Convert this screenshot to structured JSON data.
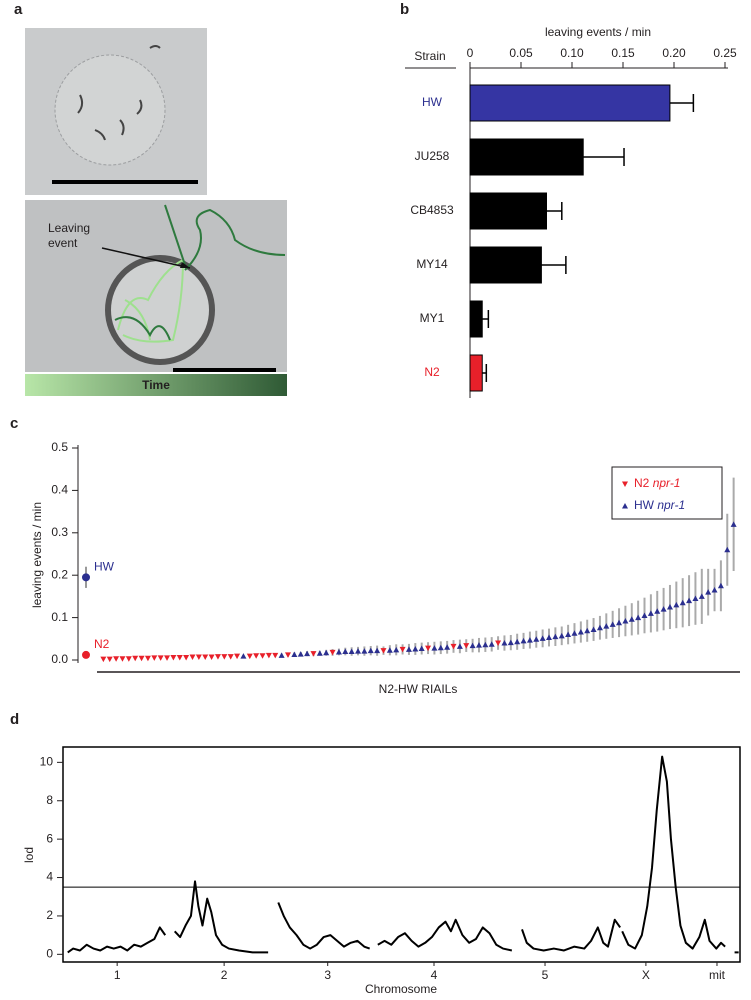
{
  "panel_labels": [
    "a",
    "b",
    "c",
    "d"
  ],
  "panel_a": {
    "annotation_lines": [
      "Leaving",
      "event"
    ],
    "time_label": "Time"
  },
  "chart_data": [
    {
      "type": "bar",
      "orientation": "horizontal",
      "xlabel": "leaving events / min",
      "category_header": "Strain",
      "categories": [
        "HW",
        "JU258",
        "CB4853",
        "MY14",
        "MY1",
        "N2"
      ],
      "values": [
        0.196,
        0.111,
        0.075,
        0.07,
        0.012,
        0.012
      ],
      "errors": [
        0.023,
        0.04,
        0.015,
        0.024,
        0.006,
        0.004
      ],
      "colors": [
        "#3535a3",
        "#000000",
        "#000000",
        "#000000",
        "#000000",
        "#e8202a"
      ],
      "label_colors": [
        "#2b2f8f",
        "#231f20",
        "#231f20",
        "#231f20",
        "#231f20",
        "#e8202a"
      ],
      "xlim": [
        0,
        0.25
      ],
      "xticks": [
        0,
        0.05,
        {
          "value": 0.1,
          "label": "0.10"
        },
        0.15,
        {
          "value": 0.2,
          "label": "0.20"
        },
        0.25
      ]
    },
    {
      "type": "scatter",
      "ylabel": "leaving events / min",
      "xlabel": "N2-HW RIAILs",
      "ylim": [
        0,
        0.5
      ],
      "yticks": [
        {
          "value": 0,
          "label": "0.0"
        },
        0.1,
        0.2,
        0.3,
        0.4,
        0.5
      ],
      "xlim": [
        0,
        101
      ],
      "legend": "upper right",
      "parents": {
        "names": [
          "HW",
          "N2"
        ],
        "values": [
          0.195,
          0.012
        ],
        "errors": [
          0.025,
          0.004
        ],
        "colors": [
          "#2b2f8f",
          "#e8202a"
        ]
      },
      "series": [
        {
          "name": "N2 npr-1",
          "color": "#e8202a",
          "marker": "triangle-down",
          "x": [
            1,
            2,
            3,
            4,
            5,
            6,
            7,
            8,
            9,
            10,
            11,
            12,
            13,
            14,
            15,
            16,
            17,
            18,
            19,
            20,
            21,
            22,
            24,
            25,
            26,
            27,
            28,
            30,
            34,
            37,
            45,
            48,
            52,
            56,
            58,
            63
          ],
          "values": [
            0.002,
            0.002,
            0.003,
            0.003,
            0.003,
            0.004,
            0.004,
            0.004,
            0.005,
            0.005,
            0.005,
            0.006,
            0.006,
            0.006,
            0.007,
            0.007,
            0.007,
            0.007,
            0.008,
            0.008,
            0.008,
            0.009,
            0.009,
            0.01,
            0.01,
            0.011,
            0.011,
            0.012,
            0.015,
            0.018,
            0.022,
            0.025,
            0.028,
            0.032,
            0.034,
            0.04
          ],
          "errors": [
            0.001,
            0.001,
            0.001,
            0.001,
            0.001,
            0.001,
            0.001,
            0.001,
            0.001,
            0.001,
            0.001,
            0.001,
            0.001,
            0.001,
            0.001,
            0.001,
            0.001,
            0.001,
            0.001,
            0.001,
            0.001,
            0.001,
            0.002,
            0.002,
            0.003,
            0.003,
            0.003,
            0.004,
            0.006,
            0.008,
            0.01,
            0.012,
            0.014,
            0.015,
            0.015,
            0.016
          ]
        },
        {
          "name": "HW npr-1",
          "color": "#2b2f8f",
          "marker": "triangle-up",
          "x": [
            23,
            29,
            31,
            32,
            33,
            35,
            36,
            38,
            39,
            40,
            41,
            42,
            43,
            44,
            46,
            47,
            49,
            50,
            51,
            53,
            54,
            55,
            57,
            59,
            60,
            61,
            62,
            64,
            65,
            66,
            67,
            68,
            69,
            70,
            71,
            72,
            73,
            74,
            75,
            76,
            77,
            78,
            79,
            80,
            81,
            82,
            83,
            84,
            85,
            86,
            87,
            88,
            89,
            90,
            91,
            92,
            93,
            94,
            95,
            96,
            97,
            98,
            99,
            100
          ],
          "values": [
            0.009,
            0.011,
            0.013,
            0.014,
            0.015,
            0.016,
            0.017,
            0.019,
            0.02,
            0.02,
            0.021,
            0.021,
            0.022,
            0.022,
            0.023,
            0.024,
            0.025,
            0.026,
            0.027,
            0.028,
            0.029,
            0.03,
            0.032,
            0.034,
            0.035,
            0.036,
            0.037,
            0.04,
            0.041,
            0.043,
            0.045,
            0.047,
            0.049,
            0.051,
            0.053,
            0.055,
            0.057,
            0.06,
            0.063,
            0.066,
            0.069,
            0.072,
            0.076,
            0.08,
            0.084,
            0.088,
            0.092,
            0.096,
            0.1,
            0.105,
            0.11,
            0.115,
            0.12,
            0.125,
            0.13,
            0.135,
            0.14,
            0.145,
            0.15,
            0.16,
            0.165,
            0.175,
            0.26,
            0.32
          ],
          "errors": [
            0.003,
            0.004,
            0.005,
            0.005,
            0.006,
            0.006,
            0.007,
            0.008,
            0.009,
            0.01,
            0.01,
            0.011,
            0.011,
            0.012,
            0.012,
            0.013,
            0.013,
            0.014,
            0.014,
            0.015,
            0.015,
            0.015,
            0.016,
            0.016,
            0.017,
            0.017,
            0.017,
            0.018,
            0.018,
            0.019,
            0.019,
            0.02,
            0.02,
            0.021,
            0.021,
            0.022,
            0.022,
            0.023,
            0.024,
            0.025,
            0.026,
            0.027,
            0.028,
            0.03,
            0.032,
            0.034,
            0.036,
            0.038,
            0.04,
            0.042,
            0.045,
            0.048,
            0.05,
            0.052,
            0.055,
            0.058,
            0.06,
            0.062,
            0.065,
            0.055,
            0.05,
            0.06,
            0.085,
            0.11
          ]
        }
      ]
    },
    {
      "type": "line",
      "ylabel": "lod",
      "xlabel": "Chromosome",
      "ylim": [
        -0.4,
        10.8
      ],
      "yticks": [
        0,
        2,
        4,
        6,
        8,
        10
      ],
      "xlim": [
        0,
        100
      ],
      "xticks": [
        {
          "value": 8,
          "label": "1"
        },
        {
          "value": 23.8,
          "label": "2"
        },
        {
          "value": 39.1,
          "label": "3"
        },
        {
          "value": 54.8,
          "label": "4"
        },
        {
          "value": 71.2,
          "label": "5"
        },
        {
          "value": 86.1,
          "label": "X"
        },
        {
          "value": 96.6,
          "label": "mit"
        }
      ],
      "threshold": 3.5,
      "series": [
        {
          "color": "#000000",
          "x": [
            0.7,
            1.5,
            2.5,
            3.5,
            4.5,
            5.5,
            6.5,
            7.5,
            8.5,
            9.5,
            10.5,
            11.5,
            12.5,
            13.5,
            14.3,
            15.1,
            null,
            16.5,
            17.3,
            18.1,
            18.9,
            19.5,
            20.0,
            20.6,
            21.3,
            21.9,
            22.6,
            23.5,
            24.5,
            26,
            28,
            30.3,
            null,
            31.8,
            32.6,
            33.5,
            34.5,
            35.5,
            36.5,
            37.5,
            38.5,
            39.5,
            40.5,
            41.5,
            42.5,
            43.5,
            44.5,
            45.3,
            null,
            46.5,
            47.5,
            48.5,
            49.5,
            50.5,
            51.5,
            52.5,
            53.5,
            54.5,
            55.5,
            56.5,
            57.3,
            58,
            59,
            60,
            61,
            62,
            63,
            64,
            65,
            66.3,
            null,
            67.8,
            68.5,
            69.5,
            71,
            72.5,
            74,
            75.5,
            77,
            78,
            79,
            79.8,
            80.5,
            81.5,
            82.3,
            null,
            82.6,
            83.5,
            84.5,
            85.5,
            86.3,
            87,
            87.7,
            88.5,
            89.2,
            89.8,
            90.5,
            91.2,
            92,
            93,
            94,
            94.8,
            95.5,
            96.5,
            97.2,
            97.8,
            null,
            99.2,
            99.8
          ],
          "values": [
            0.1,
            0.3,
            0.2,
            0.5,
            0.3,
            0.2,
            0.4,
            0.3,
            0.4,
            0.2,
            0.5,
            0.4,
            0.6,
            0.8,
            1.4,
            1.0,
            null,
            1.2,
            0.9,
            1.5,
            2.0,
            3.8,
            2.5,
            1.5,
            2.9,
            2.2,
            1.0,
            0.5,
            0.3,
            0.2,
            0.1,
            0.1,
            null,
            2.7,
            2.0,
            1.4,
            1.0,
            0.5,
            0.3,
            0.5,
            0.9,
            1.0,
            0.7,
            0.4,
            0.6,
            0.7,
            0.4,
            0.3,
            null,
            0.5,
            0.7,
            0.5,
            0.9,
            1.1,
            0.7,
            0.4,
            0.6,
            0.9,
            1.4,
            1.7,
            1.2,
            1.8,
            1.0,
            0.6,
            0.8,
            1.4,
            1.1,
            0.5,
            0.3,
            0.2,
            null,
            1.3,
            0.6,
            0.3,
            0.2,
            0.3,
            0.2,
            0.4,
            0.3,
            0.7,
            1.4,
            0.6,
            0.4,
            1.8,
            1.4,
            null,
            1.2,
            0.5,
            0.3,
            1.0,
            2.5,
            4.5,
            7.5,
            10.3,
            9.0,
            6.0,
            3.5,
            1.5,
            0.6,
            0.3,
            0.9,
            1.8,
            0.7,
            0.3,
            0.6,
            0.4,
            null,
            0.1,
            0.1
          ]
        }
      ]
    }
  ]
}
